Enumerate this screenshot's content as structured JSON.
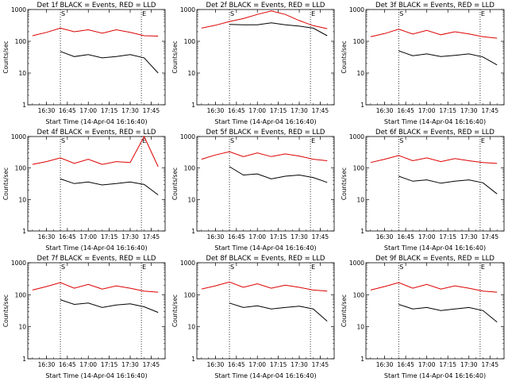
{
  "colors": {
    "events": "#000000",
    "lld": "#dd0000",
    "axis": "#000000",
    "background": "#ffffff"
  },
  "chart_data": [
    {
      "type": "line",
      "title": "Det 1f BLACK = Events, RED = LLD",
      "xlabel": "Start Time (14-Apr-04 16:16:40)",
      "ylabel": "Counts/sec",
      "xlim": [
        "16:16:40",
        "17:55:00"
      ],
      "ylim": [
        1,
        1000
      ],
      "yscale": "log",
      "xticks": [
        "16:30",
        "16:45",
        "17:00",
        "17:15",
        "17:30",
        "17:45"
      ],
      "yticks": [
        "1",
        "10",
        "100",
        "1000"
      ],
      "markers": [
        {
          "time": "16:40",
          "label": "S"
        },
        {
          "time": "17:38",
          "label": "E"
        }
      ],
      "x": [
        "16:20",
        "16:30",
        "16:40",
        "16:50",
        "17:00",
        "17:10",
        "17:20",
        "17:30",
        "17:40",
        "17:50"
      ],
      "series": [
        {
          "values": [
            150,
            190,
            260,
            200,
            230,
            180,
            230,
            190,
            150,
            145
          ]
        },
        {
          "values": [
            null,
            null,
            48,
            33,
            38,
            30,
            33,
            38,
            30,
            10
          ]
        }
      ]
    },
    {
      "type": "line",
      "title": "Det 2f BLACK = Events, RED = LLD",
      "xlabel": "Start Time (14-Apr-04 16:16:40)",
      "ylabel": "Counts/sec",
      "xlim": [
        "16:16:40",
        "17:55:00"
      ],
      "ylim": [
        1,
        1000
      ],
      "yscale": "log",
      "xticks": [
        "16:30",
        "16:45",
        "17:00",
        "17:15",
        "17:30",
        "17:45"
      ],
      "yticks": [
        "1",
        "10",
        "100",
        "1000"
      ],
      "markers": [
        {
          "time": "16:40",
          "label": "S"
        },
        {
          "time": "17:38",
          "label": "E"
        }
      ],
      "x": [
        "16:20",
        "16:30",
        "16:40",
        "16:50",
        "17:00",
        "17:10",
        "17:20",
        "17:30",
        "17:40",
        "17:50"
      ],
      "series": [
        {
          "values": [
            260,
            320,
            420,
            520,
            700,
            900,
            700,
            450,
            310,
            250
          ]
        },
        {
          "values": [
            null,
            null,
            340,
            330,
            330,
            380,
            330,
            300,
            260,
            150
          ]
        }
      ]
    },
    {
      "type": "line",
      "title": "Det 3f BLACK = Events, RED = LLD",
      "xlabel": "Start Time (14-Apr-04 16:16:40)",
      "ylabel": "Counts/sec",
      "xlim": [
        "16:16:40",
        "17:55:00"
      ],
      "ylim": [
        1,
        1000
      ],
      "yscale": "log",
      "xticks": [
        "16:30",
        "16:45",
        "17:00",
        "17:15",
        "17:30",
        "17:45"
      ],
      "yticks": [
        "1",
        "10",
        "100",
        "1000"
      ],
      "markers": [
        {
          "time": "16:40",
          "label": "S"
        },
        {
          "time": "17:38",
          "label": "E"
        }
      ],
      "x": [
        "16:20",
        "16:30",
        "16:40",
        "16:50",
        "17:00",
        "17:10",
        "17:20",
        "17:30",
        "17:40",
        "17:50"
      ],
      "series": [
        {
          "values": [
            140,
            175,
            240,
            170,
            220,
            160,
            200,
            170,
            140,
            125
          ]
        },
        {
          "values": [
            null,
            null,
            50,
            35,
            40,
            33,
            36,
            40,
            32,
            18
          ]
        }
      ]
    },
    {
      "type": "line",
      "title": "Det 4f BLACK = Events, RED = LLD",
      "xlabel": "Start Time (14-Apr-04 16:16:40)",
      "ylabel": "Counts/sec",
      "xlim": [
        "16:16:40",
        "17:55:00"
      ],
      "ylim": [
        1,
        1000
      ],
      "yscale": "log",
      "xticks": [
        "16:30",
        "16:45",
        "17:00",
        "17:15",
        "17:30",
        "17:45"
      ],
      "yticks": [
        "1",
        "10",
        "100",
        "1000"
      ],
      "markers": [
        {
          "time": "16:40",
          "label": "S"
        },
        {
          "time": "17:38",
          "label": "E"
        }
      ],
      "x": [
        "16:20",
        "16:30",
        "16:40",
        "16:50",
        "17:00",
        "17:10",
        "17:20",
        "17:30",
        "17:40",
        "17:50"
      ],
      "series": [
        {
          "values": [
            130,
            160,
            210,
            140,
            190,
            130,
            160,
            150,
            1000,
            110
          ]
        },
        {
          "values": [
            null,
            null,
            45,
            32,
            36,
            29,
            32,
            36,
            30,
            14
          ]
        }
      ]
    },
    {
      "type": "line",
      "title": "Det 5f BLACK = Events, RED = LLD",
      "xlabel": "Start Time (14-Apr-04 16:16:40)",
      "ylabel": "Counts/sec",
      "xlim": [
        "16:16:40",
        "17:55:00"
      ],
      "ylim": [
        1,
        1000
      ],
      "yscale": "log",
      "xticks": [
        "16:30",
        "16:45",
        "17:00",
        "17:15",
        "17:30",
        "17:45"
      ],
      "yticks": [
        "1",
        "10",
        "100",
        "1000"
      ],
      "markers": [
        {
          "time": "16:40",
          "label": "S"
        },
        {
          "time": "17:38",
          "label": "E"
        }
      ],
      "x": [
        "16:20",
        "16:30",
        "16:40",
        "16:50",
        "17:00",
        "17:10",
        "17:20",
        "17:30",
        "17:40",
        "17:50"
      ],
      "series": [
        {
          "values": [
            190,
            260,
            330,
            230,
            300,
            230,
            280,
            240,
            190,
            170
          ]
        },
        {
          "values": [
            null,
            null,
            110,
            60,
            65,
            45,
            55,
            60,
            50,
            35
          ]
        }
      ]
    },
    {
      "type": "line",
      "title": "Det 6f BLACK = Events, RED = LLD",
      "xlabel": "Start Time (14-Apr-04 16:16:40)",
      "ylabel": "Counts/sec",
      "xlim": [
        "16:16:40",
        "17:55:00"
      ],
      "ylim": [
        1,
        1000
      ],
      "yscale": "log",
      "xticks": [
        "16:30",
        "16:45",
        "17:00",
        "17:15",
        "17:30",
        "17:45"
      ],
      "yticks": [
        "1",
        "10",
        "100",
        "1000"
      ],
      "markers": [
        {
          "time": "16:40",
          "label": "S"
        },
        {
          "time": "17:38",
          "label": "E"
        }
      ],
      "x": [
        "16:20",
        "16:30",
        "16:40",
        "16:50",
        "17:00",
        "17:10",
        "17:20",
        "17:30",
        "17:40",
        "17:50"
      ],
      "series": [
        {
          "values": [
            150,
            190,
            250,
            170,
            210,
            160,
            200,
            170,
            150,
            140
          ]
        },
        {
          "values": [
            null,
            null,
            55,
            38,
            42,
            33,
            38,
            42,
            34,
            15
          ]
        }
      ]
    },
    {
      "type": "line",
      "title": "Det 7f BLACK = Events, RED = LLD",
      "xlabel": "Start Time (14-Apr-04 16:16:40)",
      "ylabel": "Counts/sec",
      "xlim": [
        "16:16:40",
        "17:55:00"
      ],
      "ylim": [
        1,
        1000
      ],
      "yscale": "log",
      "xticks": [
        "16:30",
        "16:45",
        "17:00",
        "17:15",
        "17:30",
        "17:45"
      ],
      "yticks": [
        "1",
        "10",
        "100",
        "1000"
      ],
      "markers": [
        {
          "time": "16:40",
          "label": "S"
        },
        {
          "time": "17:38",
          "label": "E"
        }
      ],
      "x": [
        "16:20",
        "16:30",
        "16:40",
        "16:50",
        "17:00",
        "17:10",
        "17:20",
        "17:30",
        "17:40",
        "17:50"
      ],
      "series": [
        {
          "values": [
            140,
            180,
            240,
            160,
            210,
            150,
            190,
            160,
            130,
            120
          ]
        },
        {
          "values": [
            null,
            null,
            70,
            50,
            55,
            40,
            48,
            52,
            42,
            28
          ]
        }
      ]
    },
    {
      "type": "line",
      "title": "Det 8f BLACK = Events, RED = LLD",
      "xlabel": "Start Time (14-Apr-04 16:16:40)",
      "ylabel": "Counts/sec",
      "xlim": [
        "16:16:40",
        "17:55:00"
      ],
      "ylim": [
        1,
        1000
      ],
      "yscale": "log",
      "xticks": [
        "16:30",
        "16:45",
        "17:00",
        "17:15",
        "17:30",
        "17:45"
      ],
      "yticks": [
        "1",
        "10",
        "100",
        "1000"
      ],
      "markers": [
        {
          "time": "16:40",
          "label": "S"
        },
        {
          "time": "17:38",
          "label": "E"
        }
      ],
      "x": [
        "16:20",
        "16:30",
        "16:40",
        "16:50",
        "17:00",
        "17:10",
        "17:20",
        "17:30",
        "17:40",
        "17:50"
      ],
      "series": [
        {
          "values": [
            150,
            190,
            250,
            170,
            220,
            160,
            200,
            170,
            140,
            130
          ]
        },
        {
          "values": [
            null,
            null,
            55,
            40,
            45,
            36,
            40,
            44,
            36,
            15
          ]
        }
      ]
    },
    {
      "type": "line",
      "title": "Det 9f BLACK = Events, RED = LLD",
      "xlabel": "Start Time (14-Apr-04 16:16:40)",
      "ylabel": "Counts/sec",
      "xlim": [
        "16:16:40",
        "17:55:00"
      ],
      "ylim": [
        1,
        1000
      ],
      "yscale": "log",
      "xticks": [
        "16:30",
        "16:45",
        "17:00",
        "17:15",
        "17:30",
        "17:45"
      ],
      "yticks": [
        "1",
        "10",
        "100",
        "1000"
      ],
      "markers": [
        {
          "time": "16:40",
          "label": "S"
        },
        {
          "time": "17:38",
          "label": "E"
        }
      ],
      "x": [
        "16:20",
        "16:30",
        "16:40",
        "16:50",
        "17:00",
        "17:10",
        "17:20",
        "17:30",
        "17:40",
        "17:50"
      ],
      "series": [
        {
          "values": [
            140,
            180,
            240,
            160,
            210,
            150,
            190,
            160,
            130,
            120
          ]
        },
        {
          "values": [
            null,
            null,
            50,
            36,
            40,
            32,
            36,
            40,
            32,
            14
          ]
        }
      ]
    }
  ]
}
